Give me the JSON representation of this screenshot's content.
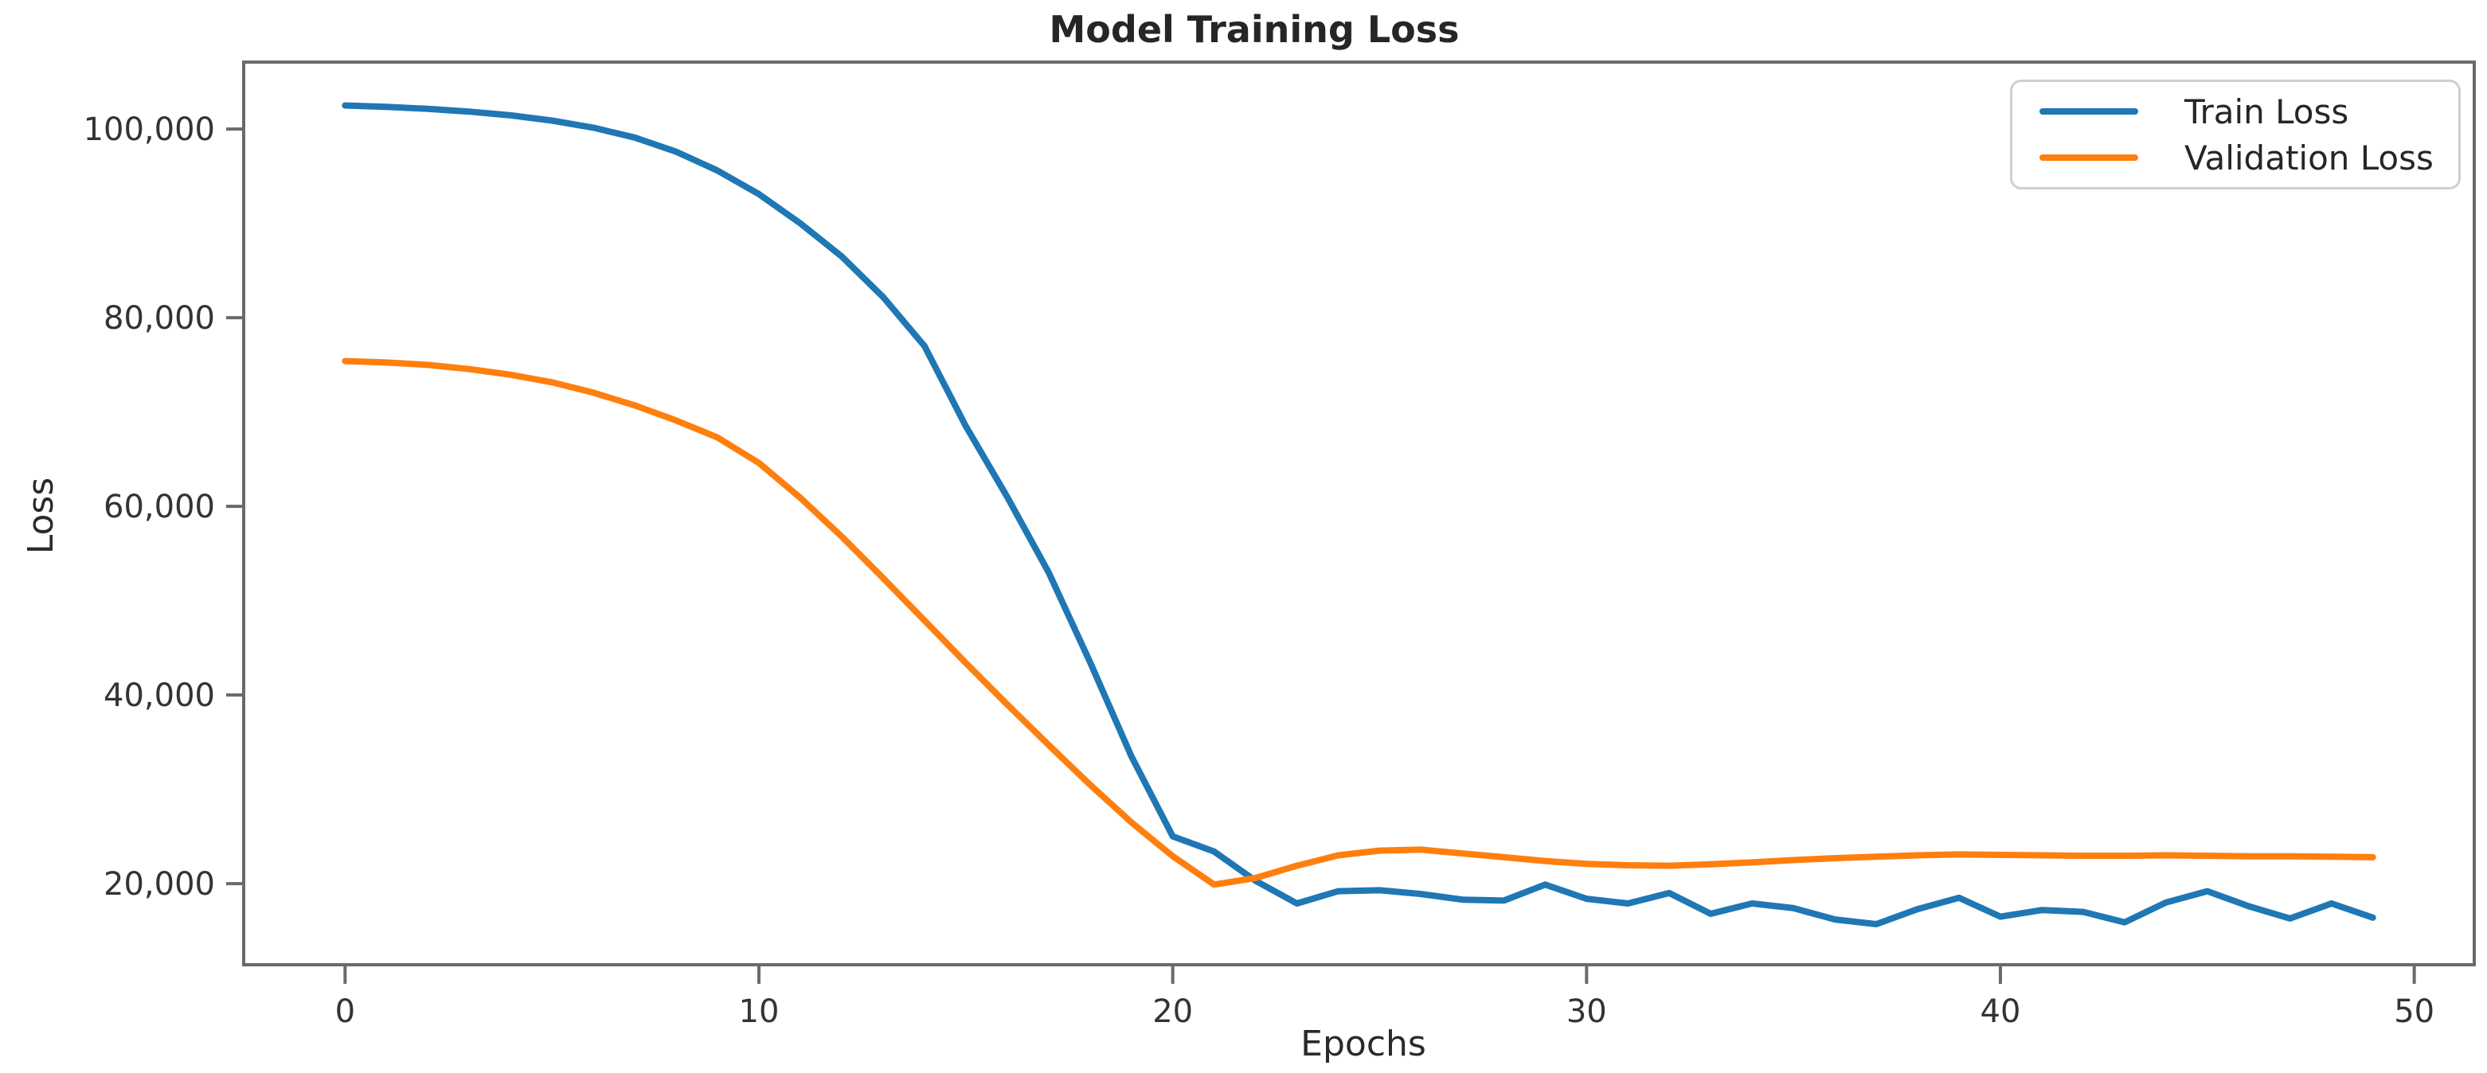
{
  "figure": {
    "background": "#ffffff",
    "text_color": "#2a2a2a",
    "spine_color": "#6a6a6a"
  },
  "chart_data": {
    "type": "line",
    "title": "Model Training Loss",
    "xlabel": "Epochs",
    "ylabel": "Loss",
    "grid": false,
    "legend_position": "upper right",
    "xlim": [
      -2.45,
      51.45
    ],
    "ylim": [
      11400,
      107100
    ],
    "xticks": [
      0,
      10,
      20,
      30,
      40,
      50
    ],
    "yticks": [
      20000,
      40000,
      60000,
      80000,
      100000
    ],
    "x": [
      0,
      1,
      2,
      3,
      4,
      5,
      6,
      7,
      8,
      9,
      10,
      11,
      12,
      13,
      14,
      15,
      16,
      17,
      18,
      19,
      20,
      21,
      22,
      23,
      24,
      25,
      26,
      27,
      28,
      29,
      30,
      31,
      32,
      33,
      34,
      35,
      36,
      37,
      38,
      39,
      40,
      41,
      42,
      43,
      44,
      45,
      46,
      47,
      48,
      49
    ],
    "series": [
      {
        "name": "Train Loss",
        "color": "#1f77b4",
        "values": [
          102500,
          102350,
          102150,
          101850,
          101450,
          100900,
          100150,
          99100,
          97600,
          95600,
          93100,
          90000,
          86500,
          82200,
          77000,
          68500,
          61000,
          53000,
          43500,
          33500,
          25000,
          23400,
          20300,
          17900,
          19200,
          19300,
          18900,
          18300,
          18200,
          19900,
          18400,
          17900,
          19000,
          16800,
          17900,
          17400,
          16200,
          15700,
          17300,
          18500,
          16500,
          17200,
          17000,
          15900,
          18000,
          19200,
          17600,
          16300,
          17900,
          16400
        ]
      },
      {
        "name": "Validation Loss",
        "color": "#ff7f0e",
        "values": [
          75400,
          75250,
          75000,
          74550,
          73950,
          73150,
          72050,
          70700,
          69100,
          67300,
          64600,
          60900,
          56800,
          52400,
          47900,
          43400,
          39000,
          34700,
          30500,
          26500,
          22900,
          19900,
          20600,
          21900,
          23000,
          23500,
          23600,
          23200,
          22800,
          22400,
          22100,
          21950,
          21900,
          22050,
          22250,
          22500,
          22700,
          22850,
          23000,
          23100,
          23050,
          23000,
          22950,
          22950,
          23000,
          22950,
          22900,
          22900,
          22850,
          22800
        ]
      }
    ]
  }
}
